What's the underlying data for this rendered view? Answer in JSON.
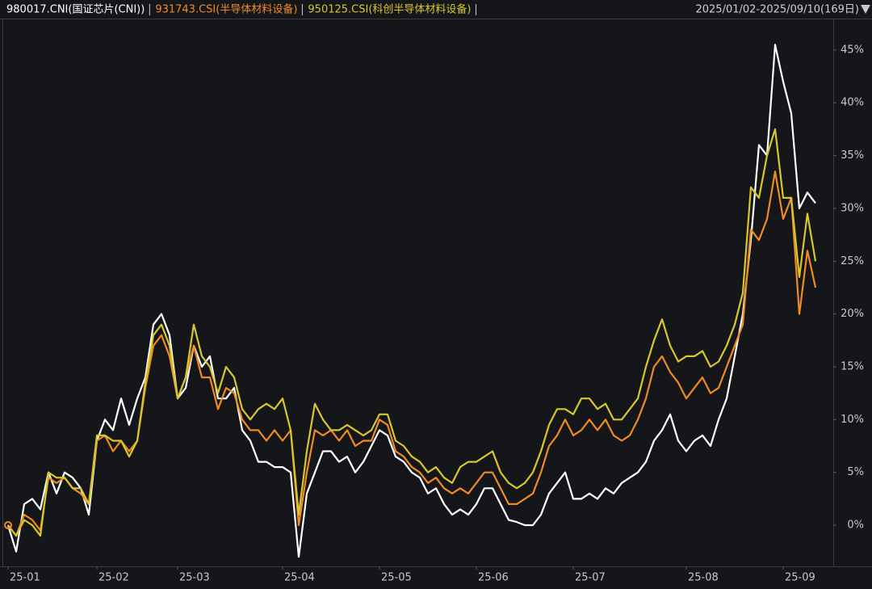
{
  "chart_data": {
    "type": "line",
    "date_range": "2025/01/02-2025/09/10(169日)",
    "categories": [
      "25-01",
      null,
      null,
      null,
      null,
      null,
      null,
      null,
      null,
      null,
      null,
      "25-02",
      null,
      null,
      null,
      null,
      null,
      null,
      null,
      null,
      null,
      "25-03",
      null,
      null,
      null,
      null,
      null,
      null,
      null,
      null,
      null,
      null,
      null,
      null,
      "25-04",
      null,
      null,
      null,
      null,
      null,
      null,
      null,
      null,
      null,
      null,
      null,
      "25-05",
      null,
      null,
      null,
      null,
      null,
      null,
      null,
      null,
      null,
      null,
      null,
      "25-06",
      null,
      null,
      null,
      null,
      null,
      null,
      null,
      null,
      null,
      null,
      null,
      "25-07",
      null,
      null,
      null,
      null,
      null,
      null,
      null,
      null,
      null,
      null,
      null,
      null,
      null,
      "25-08",
      null,
      null,
      null,
      null,
      null,
      null,
      null,
      null,
      null,
      null,
      null,
      "25-09",
      null,
      null,
      null,
      null
    ],
    "series": [
      {
        "name": "980017.CNI(国证芯片(CNI))",
        "color": "#ffffff",
        "values": [
          0,
          -2.5,
          2,
          2.5,
          1.5,
          5,
          3,
          5,
          4.5,
          3.5,
          1,
          8,
          10,
          9,
          12,
          9.5,
          12,
          14,
          19,
          20,
          18,
          12,
          13,
          17,
          15,
          16,
          12,
          12,
          13,
          9,
          8,
          6,
          6,
          5.5,
          5.5,
          5,
          -3,
          3,
          5,
          7,
          7,
          6,
          6.5,
          5,
          6,
          7.5,
          9,
          8.5,
          6.5,
          6,
          5,
          4.5,
          3,
          3.5,
          2,
          1,
          1.5,
          1,
          2,
          3.5,
          3.5,
          2,
          0.5,
          0.3,
          0,
          0,
          1,
          3,
          4,
          5,
          2.5,
          2.5,
          3,
          2.5,
          3.5,
          3,
          4,
          4.5,
          5,
          6,
          8,
          9,
          10.5,
          8,
          7,
          8,
          8.5,
          7.5,
          10,
          12,
          16,
          20,
          27,
          36,
          35,
          45.5,
          42,
          39,
          30,
          31.5,
          30.5
        ]
      },
      {
        "name": "931743.CSI(半导体材料设备)",
        "color": "#f08a24",
        "values": [
          0,
          -1,
          1,
          0.5,
          -0.5,
          4.5,
          4,
          4.5,
          3.5,
          3,
          2,
          8,
          8.5,
          7,
          8,
          7,
          8,
          13,
          17,
          18,
          16,
          12,
          14,
          17,
          14,
          14,
          11,
          13,
          12.5,
          10,
          9,
          9,
          8,
          9,
          8,
          9,
          0,
          5,
          9,
          8.5,
          9,
          8,
          9,
          7.5,
          8,
          8,
          10,
          9.5,
          7,
          6.5,
          5.5,
          5,
          4,
          4.5,
          3.5,
          3,
          3.5,
          3,
          4,
          5,
          5,
          3.5,
          2,
          2,
          2.5,
          3,
          5,
          7.5,
          8.5,
          10,
          8.5,
          9,
          10,
          9,
          10,
          8.5,
          8,
          8.5,
          10,
          12,
          15,
          16,
          14.5,
          13.5,
          12,
          13,
          14,
          12.5,
          13,
          15,
          17,
          19,
          28,
          27,
          29,
          33.5,
          29,
          31,
          20,
          26,
          22.5
        ]
      },
      {
        "name": "950125.CSI(科创半导体材料设备)",
        "color": "#d8c72c",
        "values": [
          0,
          -1,
          0.5,
          0,
          -1,
          5,
          4.5,
          4.5,
          3.5,
          3.5,
          2,
          8.5,
          8.5,
          8,
          8,
          6.5,
          8,
          13.5,
          18,
          19,
          17,
          12,
          14,
          19,
          16,
          15,
          12.5,
          15,
          14,
          11,
          10,
          11,
          11.5,
          11,
          12,
          9,
          1,
          7,
          11.5,
          10,
          9,
          9,
          9.5,
          9,
          8.5,
          9,
          10.5,
          10.5,
          8,
          7.5,
          6.5,
          6,
          5,
          5.5,
          4.5,
          4,
          5.5,
          6,
          6,
          6.5,
          7,
          5,
          4,
          3.5,
          4,
          5,
          7,
          9.5,
          11,
          11,
          10.5,
          12,
          12,
          11,
          11.5,
          10,
          10,
          11,
          12,
          15,
          17.5,
          19.5,
          17,
          15.5,
          16,
          16,
          16.5,
          15,
          15.5,
          17,
          19,
          22,
          32,
          31,
          35,
          37.5,
          31,
          31,
          23.5,
          29.5,
          25
        ]
      }
    ],
    "ylim": [
      -3.9,
      47.9
    ],
    "yticks": [
      {
        "value": 0,
        "label": "0%"
      },
      {
        "value": 5,
        "label": "5%"
      },
      {
        "value": 10,
        "label": "10%"
      },
      {
        "value": 15,
        "label": "15%"
      },
      {
        "value": 20,
        "label": "20%"
      },
      {
        "value": 25,
        "label": "25%"
      },
      {
        "value": 30,
        "label": "30%"
      },
      {
        "value": 35,
        "label": "35%"
      },
      {
        "value": 40,
        "label": "40%"
      },
      {
        "value": 45,
        "label": "45%"
      }
    ],
    "grid": false
  }
}
